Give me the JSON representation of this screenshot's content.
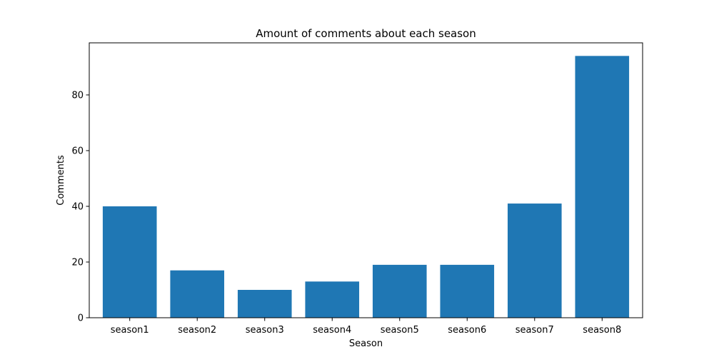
{
  "chart_data": {
    "type": "bar",
    "title": "Amount of comments about each season",
    "xlabel": "Season",
    "ylabel": "Comments",
    "categories": [
      "season1",
      "season2",
      "season3",
      "season4",
      "season5",
      "season6",
      "season7",
      "season8"
    ],
    "values": [
      40,
      17,
      10,
      13,
      19,
      19,
      41,
      94
    ],
    "ylim": [
      0,
      98.7
    ],
    "yticks": [
      0,
      20,
      40,
      60,
      80
    ],
    "grid": false,
    "bar_color": "#1f77b4"
  }
}
